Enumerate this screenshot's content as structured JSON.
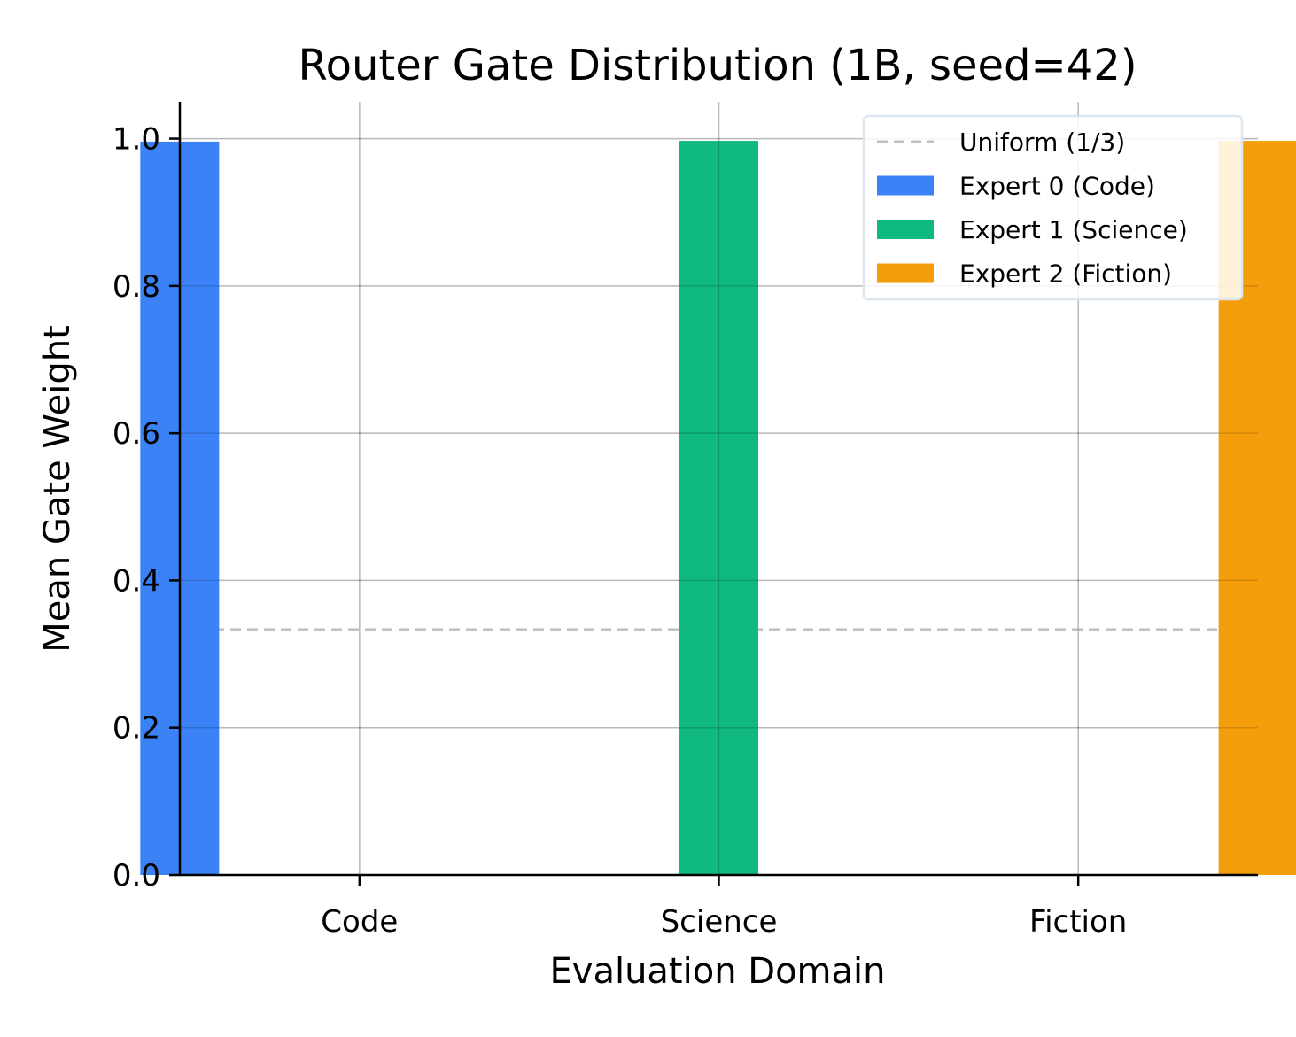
{
  "chart_data": {
    "type": "bar",
    "title": "Router Gate Distribution (1B, seed=42)",
    "xlabel": "Evaluation Domain",
    "ylabel": "Mean Gate Weight",
    "categories": [
      "Code",
      "Science",
      "Fiction"
    ],
    "series": [
      {
        "name": "Expert 0 (Code)",
        "color": "#3b82f6",
        "values": [
          0.996,
          0.0,
          0.0
        ]
      },
      {
        "name": "Expert 1 (Science)",
        "color": "#10b981",
        "values": [
          0.0,
          0.997,
          0.0
        ]
      },
      {
        "name": "Expert 2 (Fiction)",
        "color": "#f59e0b",
        "values": [
          0.0,
          0.0,
          0.997
        ]
      }
    ],
    "reference_line": {
      "name": "Uniform (1/3)",
      "value": 0.3333,
      "color": "#c0c0c8",
      "style": "dashed"
    },
    "ylim": [
      0,
      1.05
    ],
    "yticks": [
      "0.0",
      "0.2",
      "0.4",
      "0.6",
      "0.8",
      "1.0"
    ],
    "grid": true,
    "legend_position": "top-right"
  }
}
